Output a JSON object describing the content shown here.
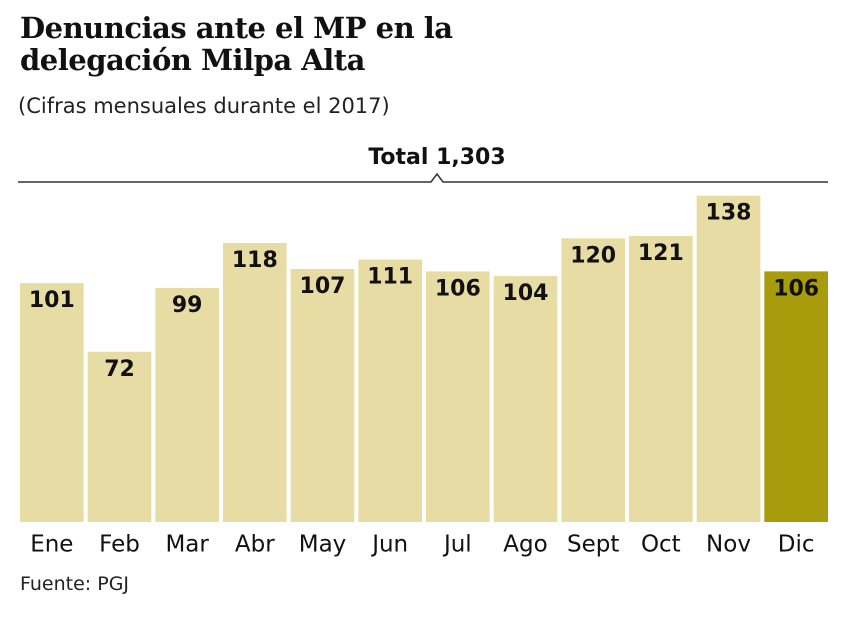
{
  "chart_data": {
    "type": "bar",
    "title": "Denuncias ante el MP en la delegación Milpa Alta",
    "subtitle": "(Cifras mensuales durante el 2017)",
    "annotation": "Total 1,303",
    "source": "Fuente: PGJ",
    "categories": [
      "Ene",
      "Feb",
      "Mar",
      "Abr",
      "May",
      "Jun",
      "Jul",
      "Ago",
      "Sept",
      "Oct",
      "Nov",
      "Dic"
    ],
    "values": [
      101,
      72,
      99,
      118,
      107,
      111,
      106,
      104,
      120,
      121,
      138,
      106
    ],
    "colors": [
      "#e8dca5",
      "#e8dca5",
      "#e8dca5",
      "#e8dca5",
      "#e8dca5",
      "#e8dca5",
      "#e8dca5",
      "#e8dca5",
      "#e8dca5",
      "#e8dca5",
      "#e8dca5",
      "#a89b0c"
    ],
    "ylim": [
      0,
      140
    ]
  }
}
